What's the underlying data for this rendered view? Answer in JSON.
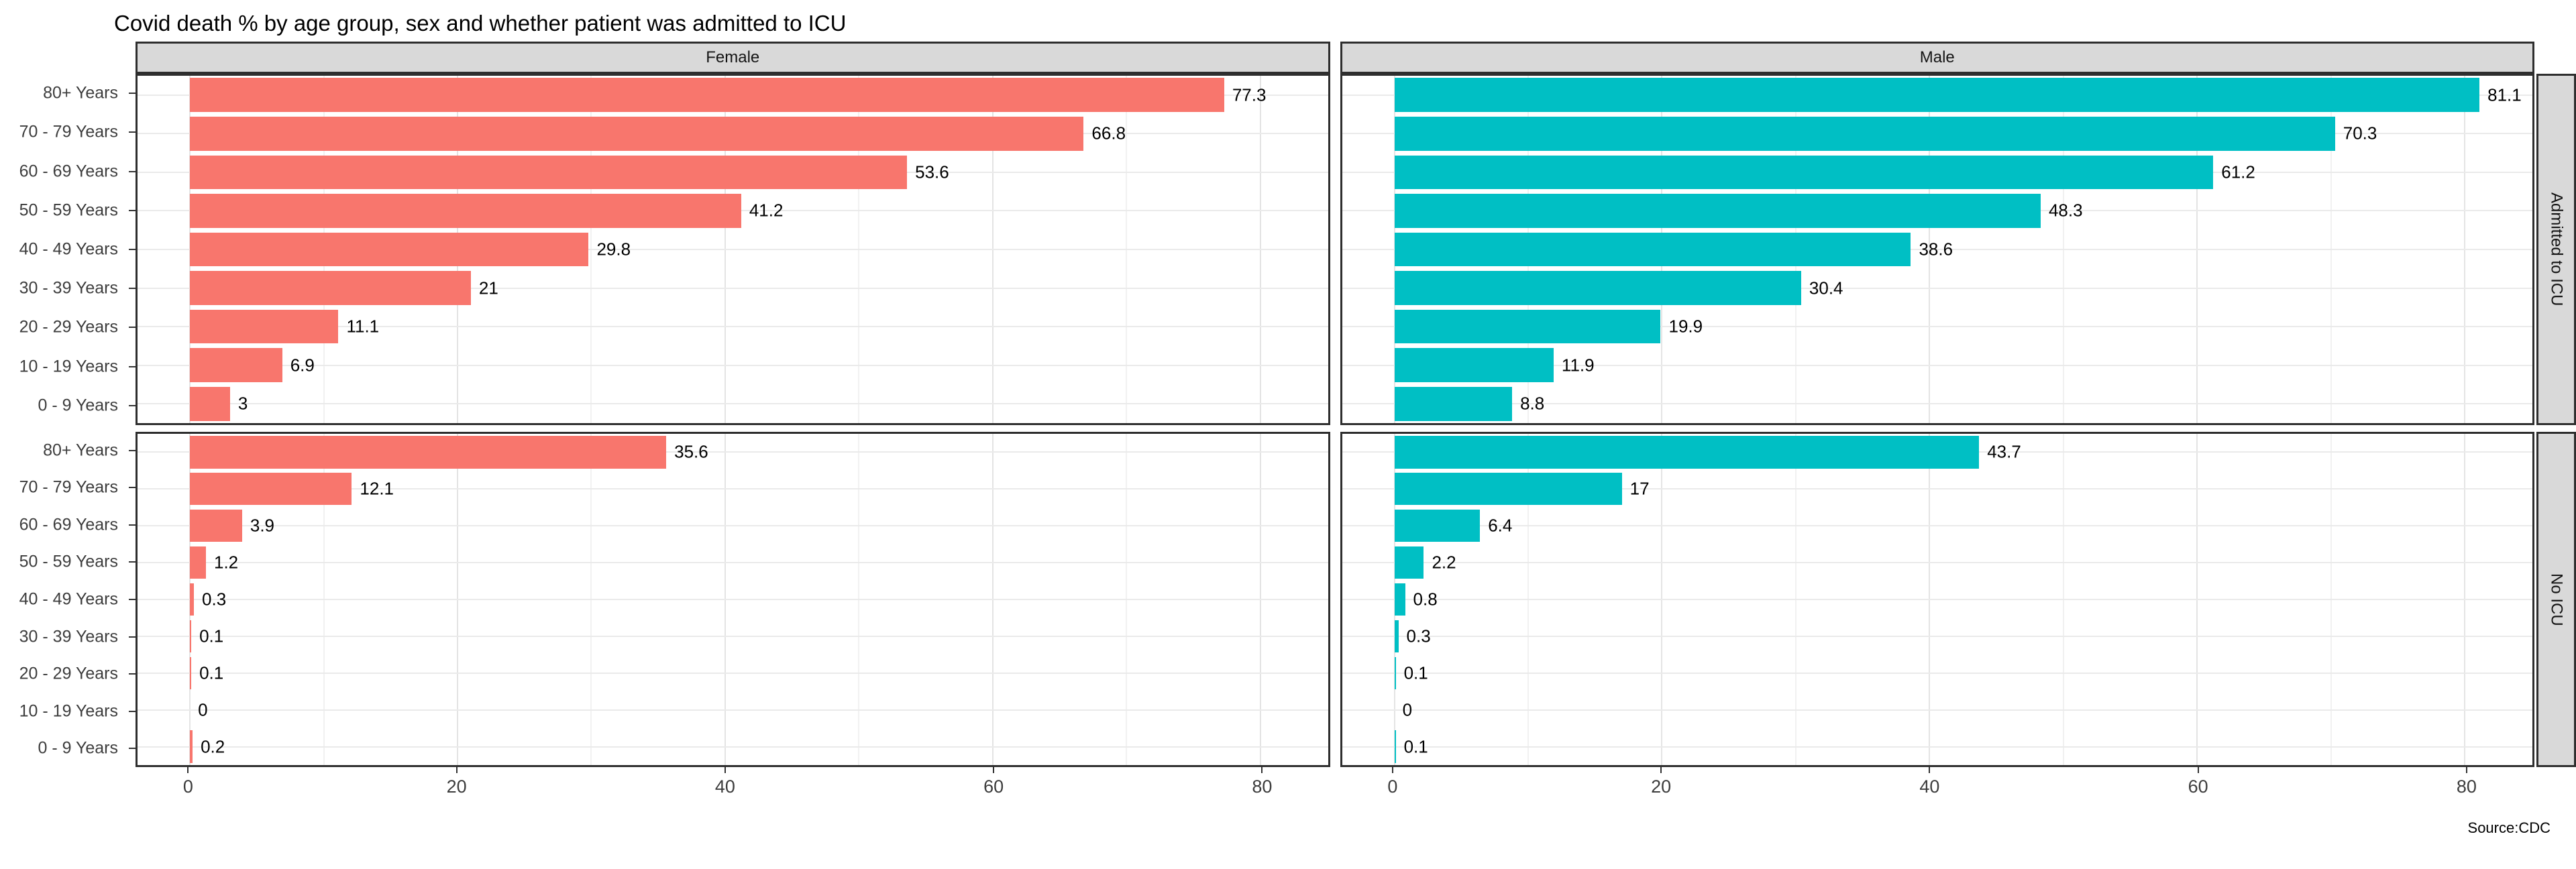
{
  "chart_data": {
    "type": "bar",
    "orientation": "horizontal",
    "title": "Covid death % by age group, sex and whether patient was admitted to ICU",
    "categories": [
      "80+ Years",
      "70 - 79 Years",
      "60 - 69 Years",
      "50 - 59 Years",
      "40 - 49 Years",
      "30 - 39 Years",
      "20 - 29 Years",
      "10 - 19 Years",
      "0 - 9 Years"
    ],
    "facet_cols": [
      {
        "label": "Female",
        "color": "#F8766D"
      },
      {
        "label": "Male",
        "color": "#00BFC4"
      }
    ],
    "facet_rows": [
      {
        "label": "Admitted to ICU"
      },
      {
        "label": "No ICU"
      }
    ],
    "series": [
      {
        "facet_col": "Female",
        "facet_row": "Admitted to ICU",
        "values": [
          77.3,
          66.8,
          53.6,
          41.2,
          29.8,
          21,
          11.1,
          6.9,
          3
        ]
      },
      {
        "facet_col": "Male",
        "facet_row": "Admitted to ICU",
        "values": [
          81.1,
          70.3,
          61.2,
          48.3,
          38.6,
          30.4,
          19.9,
          11.9,
          8.8
        ]
      },
      {
        "facet_col": "Female",
        "facet_row": "No ICU",
        "values": [
          35.6,
          12.1,
          3.9,
          1.2,
          0.3,
          0.1,
          0.1,
          0,
          0.2
        ]
      },
      {
        "facet_col": "Male",
        "facet_row": "No ICU",
        "values": [
          43.7,
          17,
          6.4,
          2.2,
          0.8,
          0.3,
          0.1,
          0,
          0.1
        ]
      }
    ],
    "value_labels_shown": true,
    "xaxis": {
      "ticks": [
        0,
        20,
        40,
        60,
        80
      ],
      "minor_ticks": [
        10,
        30,
        50,
        70
      ],
      "range": [
        0,
        84.5
      ]
    },
    "grid": "on",
    "legend": "none",
    "source": "Source:CDC",
    "style": {
      "strip_fill": "#D9D9D9",
      "panel_border": "#2E2E2E",
      "grid_major": "#E4E4E4",
      "grid_minor": "#F1F1F1",
      "background": "#FFFFFF"
    }
  }
}
